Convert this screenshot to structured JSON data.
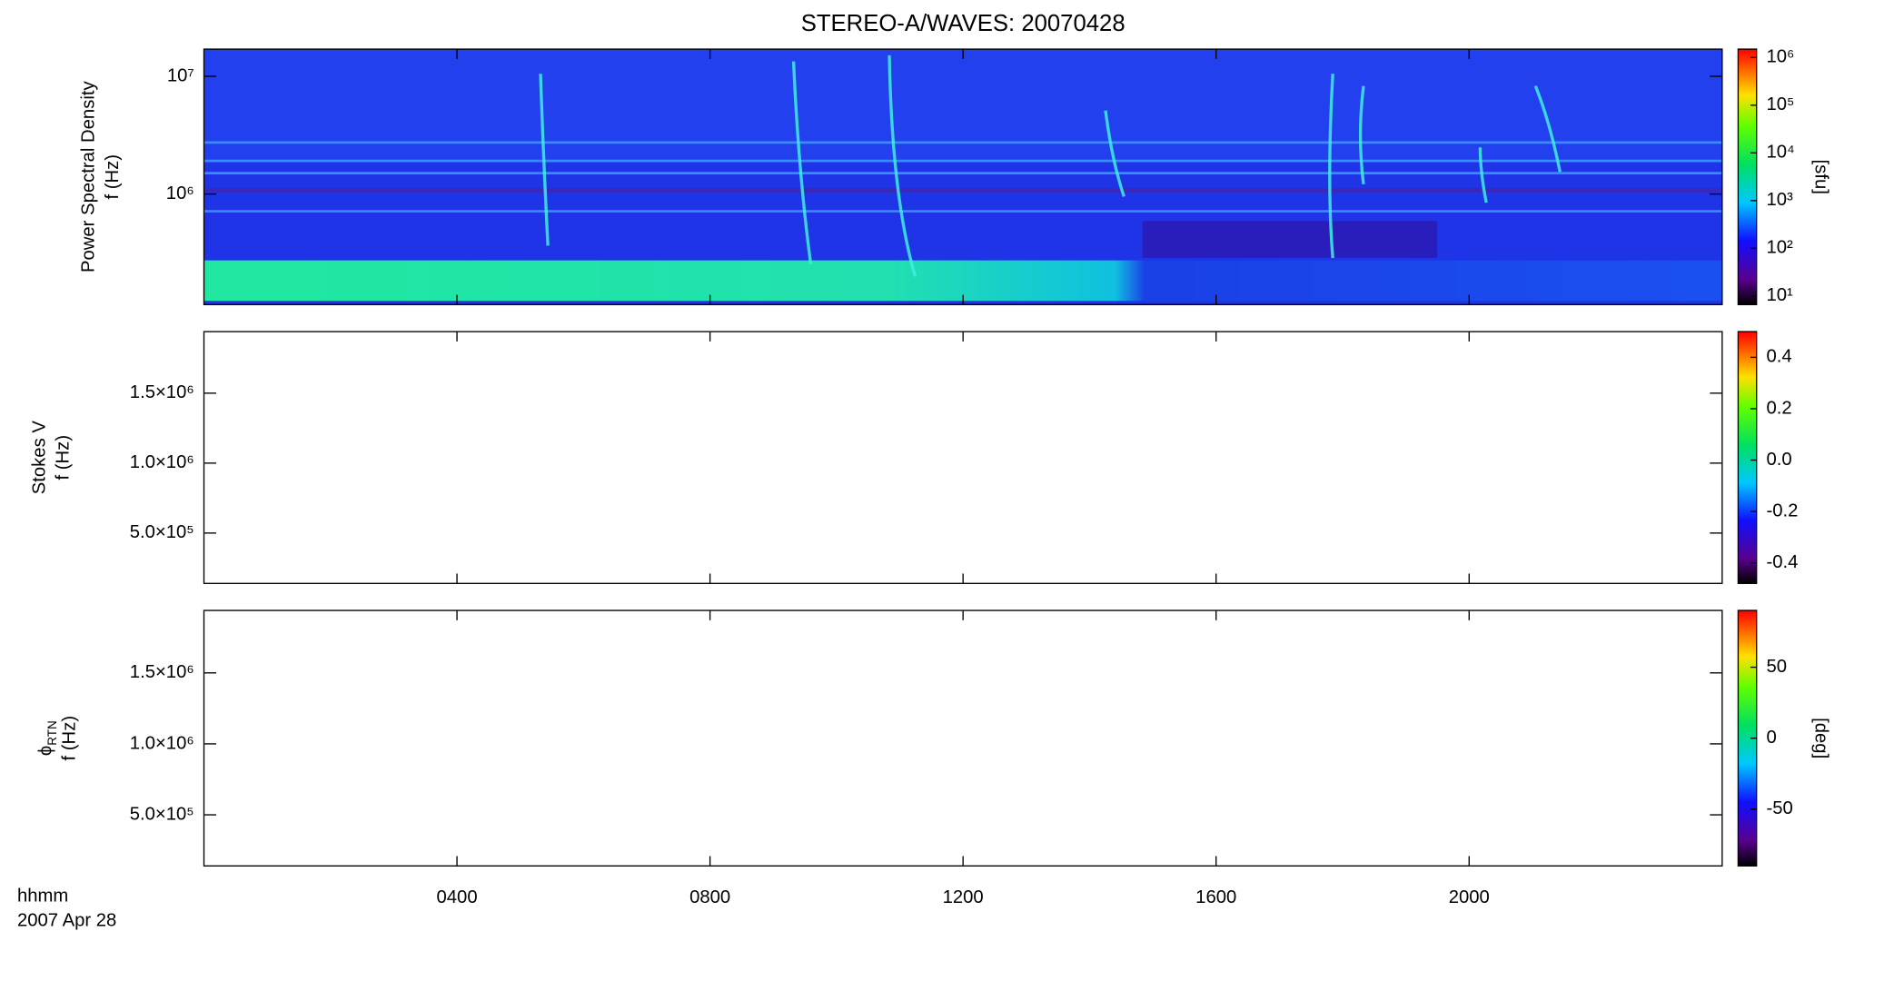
{
  "chart_data": [
    {
      "type": "heatmap",
      "ylabel": "Power Spectral Density",
      "ylabel2": "f (Hz)",
      "ylog": true,
      "ylim": [
        115000,
        17000000
      ],
      "yticks": [
        {
          "value": 1000000,
          "label": "10⁶"
        },
        {
          "value": 10000000,
          "label": "10⁷"
        }
      ],
      "clog": true,
      "clim": [
        6.6,
        1500000
      ],
      "cticks": [
        {
          "value": 10,
          "label": "10¹"
        },
        {
          "value": 100,
          "label": "10²"
        },
        {
          "value": 1000,
          "label": "10³"
        },
        {
          "value": 10000,
          "label": "10⁴"
        },
        {
          "value": 100000,
          "label": "10⁵"
        },
        {
          "value": 1000000,
          "label": "10⁶"
        }
      ],
      "clabel": "[sfu]"
    },
    {
      "type": "heatmap",
      "ylabel": "Stokes V",
      "ylabel2": "f (Hz)",
      "ylim": [
        140000,
        1940000
      ],
      "yticks": [
        {
          "value": 500000,
          "label": "5.0×10⁵"
        },
        {
          "value": 1000000,
          "label": "1.0×10⁶"
        },
        {
          "value": 1500000,
          "label": "1.5×10⁶"
        }
      ],
      "clim": [
        -0.48,
        0.5
      ],
      "cticks": [
        {
          "value": -0.4,
          "label": "-0.4"
        },
        {
          "value": -0.2,
          "label": "-0.2"
        },
        {
          "value": 0,
          "label": "0.0"
        },
        {
          "value": 0.2,
          "label": "0.2"
        },
        {
          "value": 0.4,
          "label": "0.4"
        }
      ]
    },
    {
      "type": "heatmap",
      "ylabel": "ϕ",
      "ylabel_sub": "RTN",
      "ylabel2": "f (Hz)",
      "ylim": [
        140000,
        1940000
      ],
      "yticks": [
        {
          "value": 500000,
          "label": "5.0×10⁵"
        },
        {
          "value": 1000000,
          "label": "1.0×10⁶"
        },
        {
          "value": 1500000,
          "label": "1.5×10⁶"
        }
      ],
      "clim": [
        -90,
        90
      ],
      "cticks": [
        -50,
        0,
        50
      ],
      "clabel": "[deg]"
    }
  ],
  "title": "STEREO-A/WAVES: 20070428",
  "x_axis": {
    "label": "hhmm",
    "date": "2007 Apr 28",
    "xlim": [
      0,
      24
    ],
    "xticks": [
      {
        "value": 4,
        "label": "0400"
      },
      {
        "value": 8,
        "label": "0800"
      },
      {
        "value": 12,
        "label": "1200"
      },
      {
        "value": 16,
        "label": "1600"
      },
      {
        "value": 20,
        "label": "2000"
      }
    ]
  }
}
